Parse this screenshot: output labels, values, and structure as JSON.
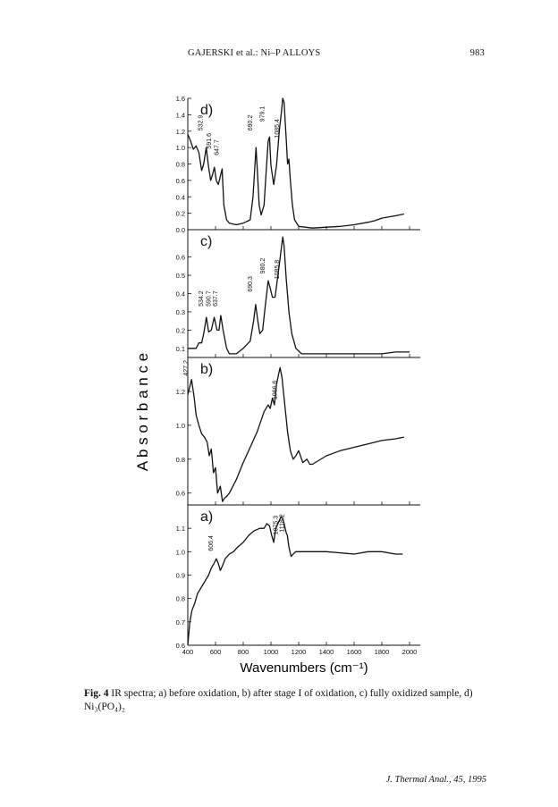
{
  "header": {
    "title": "GAJERSKI et al.: Ni–P ALLOYS",
    "page_number": "983"
  },
  "caption": {
    "label": "Fig. 4",
    "text": "IR spectra; a) before oxidation, b) after stage I of oxidation, c) fully oxidized sample, d) Ni₃(PO₄)₂"
  },
  "footer": {
    "journal": "J. Thermal Anal., 45, 1995"
  },
  "chart_data": {
    "type": "line",
    "xlabel": "Wavenumbers  (cm⁻¹)",
    "ylabel": "A b s o r b a n c e",
    "xlim": [
      400,
      2000
    ],
    "x_ticks": [
      400,
      600,
      800,
      1000,
      1200,
      1400,
      1600,
      1800,
      2000
    ],
    "x_tick_labels": [
      "400",
      "600",
      "800",
      "1000",
      "1200",
      "1400",
      "1600",
      "1800",
      "2000"
    ],
    "color": "#111111",
    "panels": [
      {
        "label": "d)",
        "ylim": [
          0.0,
          1.6
        ],
        "y_ticks": [
          0.0,
          0.2,
          0.4,
          0.6,
          0.8,
          1.0,
          1.2,
          1.4,
          1.6
        ],
        "y_tick_labels": [
          "0.0",
          "0.2",
          "0.4",
          "0.6",
          "0.8",
          "1.0",
          "1.2",
          "1.4",
          "1.6"
        ],
        "annotations": [
          {
            "text": "532.9",
            "x": 533,
            "y": 1.14
          },
          {
            "text": "591.6",
            "x": 592,
            "y": 0.92
          },
          {
            "text": "647.7",
            "x": 648,
            "y": 0.84
          },
          {
            "text": "690.2",
            "x": 890,
            "y": 1.14
          },
          {
            "text": "979.1",
            "x": 979,
            "y": 1.25
          },
          {
            "text": "1085.4",
            "x": 1085,
            "y": 1.05
          }
        ],
        "series": [
          {
            "x": [
              400,
              420,
              440,
              460,
              480,
              500,
              515,
              533,
              550,
              565,
              580,
              592,
              605,
              620,
              635,
              648,
              660,
              680,
              700,
              750,
              800,
              850,
              870,
              885,
              892,
              900,
              915,
              930,
              950,
              965,
              980,
              990,
              1000,
              1020,
              1040,
              1060,
              1075,
              1085,
              1095,
              1110,
              1120,
              1130,
              1140,
              1155,
              1170,
              1200,
              1300,
              1400,
              1500,
              1600,
              1700,
              1750,
              1800,
              1900,
              1960
            ],
            "y": [
              1.16,
              1.08,
              0.98,
              1.02,
              0.94,
              0.72,
              0.8,
              1.0,
              0.76,
              0.6,
              0.68,
              0.76,
              0.6,
              0.55,
              0.65,
              0.74,
              0.3,
              0.12,
              0.08,
              0.06,
              0.08,
              0.12,
              0.4,
              0.8,
              1.0,
              0.78,
              0.3,
              0.18,
              0.3,
              0.7,
              1.08,
              1.13,
              0.78,
              0.55,
              0.78,
              1.2,
              1.42,
              1.6,
              1.55,
              1.1,
              0.8,
              0.86,
              0.6,
              0.3,
              0.12,
              0.04,
              0.02,
              0.03,
              0.04,
              0.06,
              0.09,
              0.11,
              0.14,
              0.17,
              0.19
            ]
          }
        ]
      },
      {
        "label": "c)",
        "ylim": [
          0.05,
          0.75
        ],
        "y_ticks": [
          0.1,
          0.2,
          0.3,
          0.4,
          0.5,
          0.6
        ],
        "y_tick_labels": [
          "0.1",
          "0.2",
          "0.3",
          "0.4",
          "0.5",
          "0.6"
        ],
        "annotations": [
          {
            "text": "534.2",
            "x": 534,
            "y": 0.3
          },
          {
            "text": "590.7",
            "x": 591,
            "y": 0.3
          },
          {
            "text": "637.7",
            "x": 638,
            "y": 0.3
          },
          {
            "text": "690.3",
            "x": 890,
            "y": 0.38
          },
          {
            "text": "980.2",
            "x": 980,
            "y": 0.48
          },
          {
            "text": "1085.8",
            "x": 1085,
            "y": 0.45
          }
        ],
        "series": [
          {
            "x": [
              400,
              430,
              460,
              480,
              500,
              515,
              534,
              550,
              570,
              591,
              610,
              625,
              638,
              655,
              680,
              700,
              750,
              800,
              850,
              875,
              890,
              905,
              920,
              940,
              960,
              980,
              995,
              1010,
              1030,
              1050,
              1070,
              1085,
              1095,
              1110,
              1130,
              1150,
              1180,
              1220,
              1300,
              1500,
              1700,
              1800,
              1900,
              2000
            ],
            "y": [
              0.1,
              0.1,
              0.1,
              0.13,
              0.13,
              0.18,
              0.27,
              0.19,
              0.2,
              0.27,
              0.2,
              0.2,
              0.28,
              0.2,
              0.1,
              0.07,
              0.07,
              0.1,
              0.14,
              0.25,
              0.34,
              0.25,
              0.18,
              0.2,
              0.34,
              0.47,
              0.43,
              0.38,
              0.38,
              0.5,
              0.62,
              0.71,
              0.66,
              0.48,
              0.3,
              0.18,
              0.1,
              0.07,
              0.07,
              0.07,
              0.07,
              0.07,
              0.08,
              0.08
            ]
          }
        ]
      },
      {
        "label": "b)",
        "ylim": [
          0.53,
          1.4
        ],
        "y_ticks": [
          0.6,
          0.8,
          1.0,
          1.2
        ],
        "y_tick_labels": [
          "0.6",
          "0.8",
          "1.0",
          "1.2"
        ],
        "annotations": [
          {
            "text": "427.2",
            "x": 427,
            "y": 1.26
          },
          {
            "text": "1066.6",
            "x": 1067,
            "y": 1.12
          }
        ],
        "series": [
          {
            "x": [
              400,
              427,
              445,
              460,
              480,
              500,
              520,
              540,
              555,
              570,
              585,
              600,
              615,
              635,
              650,
              665,
              680,
              700,
              750,
              800,
              850,
              900,
              950,
              980,
              995,
              1010,
              1025,
              1040,
              1055,
              1066,
              1080,
              1090,
              1100,
              1120,
              1140,
              1160,
              1180,
              1200,
              1230,
              1260,
              1280,
              1300,
              1400,
              1500,
              1600,
              1700,
              1800,
              1900,
              1960
            ],
            "y": [
              1.18,
              1.27,
              1.17,
              1.06,
              1.0,
              0.95,
              0.93,
              0.9,
              0.82,
              0.86,
              0.72,
              0.75,
              0.6,
              0.64,
              0.55,
              0.57,
              0.58,
              0.6,
              0.68,
              0.78,
              0.87,
              0.96,
              1.08,
              1.12,
              1.1,
              1.16,
              1.12,
              1.24,
              1.3,
              1.34,
              1.28,
              1.2,
              1.12,
              0.96,
              0.85,
              0.8,
              0.82,
              0.85,
              0.78,
              0.8,
              0.77,
              0.77,
              0.82,
              0.85,
              0.87,
              0.89,
              0.91,
              0.92,
              0.93
            ]
          }
        ]
      },
      {
        "label": "a)",
        "ylim": [
          0.6,
          1.2
        ],
        "y_ticks": [
          0.6,
          0.7,
          0.8,
          0.9,
          1.0,
          1.1
        ],
        "y_tick_labels": [
          "0.6",
          "0.7",
          "0.8",
          "0.9",
          "1.0",
          "1.1"
        ],
        "annotations": [
          {
            "text": "606.4",
            "x": 606,
            "y": 0.98
          },
          {
            "text": "1075.3",
            "x": 1075,
            "y": 1.05
          },
          {
            "text": "1118.2",
            "x": 1118,
            "y": 1.06
          }
        ],
        "series": [
          {
            "x": [
              400,
              415,
              430,
              450,
              470,
              490,
              510,
              530,
              550,
              570,
              590,
              606,
              620,
              635,
              650,
              670,
              700,
              730,
              760,
              800,
              840,
              880,
              920,
              950,
              970,
              990,
              1005,
              1020,
              1035,
              1050,
              1065,
              1075,
              1085,
              1095,
              1110,
              1118,
              1130,
              1145,
              1160,
              1180,
              1250,
              1400,
              1600,
              1700,
              1800,
              1900,
              1950
            ],
            "y": [
              0.6,
              0.7,
              0.75,
              0.78,
              0.82,
              0.84,
              0.86,
              0.88,
              0.9,
              0.93,
              0.95,
              0.97,
              0.95,
              0.92,
              0.94,
              0.97,
              0.99,
              1.0,
              1.02,
              1.04,
              1.07,
              1.09,
              1.1,
              1.1,
              1.12,
              1.11,
              1.07,
              1.04,
              1.1,
              1.12,
              1.14,
              1.15,
              1.14,
              1.12,
              1.08,
              1.07,
              1.02,
              0.98,
              0.99,
              1.0,
              1.0,
              1.0,
              0.99,
              1.0,
              1.0,
              0.99,
              0.99
            ]
          }
        ]
      }
    ]
  }
}
